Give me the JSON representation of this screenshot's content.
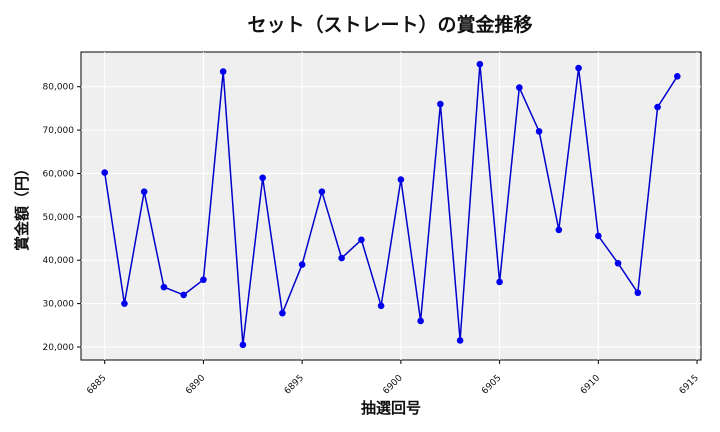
{
  "chart_data": {
    "type": "line",
    "title": "セット（ストレート）の賞金推移",
    "xlabel": "抽選回号",
    "ylabel": "賞金額（円）",
    "xlim": [
      6883.8,
      6915.2
    ],
    "ylim": [
      17000,
      88000
    ],
    "x_ticks": [
      6885,
      6890,
      6895,
      6900,
      6905,
      6910,
      6915
    ],
    "y_ticks": [
      20000,
      30000,
      40000,
      50000,
      60000,
      70000,
      80000
    ],
    "y_tick_labels": [
      "20,000",
      "30,000",
      "40,000",
      "50,000",
      "60,000",
      "70,000",
      "80,000"
    ],
    "grid": true,
    "colors": {
      "line": "#0000cc",
      "marker": "#0000ee",
      "plot_bg": "#efefef",
      "grid": "#ffffff"
    },
    "series": [
      {
        "x": [
          6885,
          6886,
          6887,
          6888,
          6889,
          6890,
          6891,
          6892,
          6893,
          6894,
          6895,
          6896,
          6897,
          6898,
          6899,
          6900,
          6901,
          6902,
          6903,
          6904,
          6905,
          6906,
          6907,
          6908,
          6909,
          6910,
          6911,
          6912,
          6913,
          6914
        ],
        "y": [
          60200,
          30000,
          55800,
          33800,
          32000,
          35500,
          83500,
          20500,
          59000,
          27800,
          39000,
          55800,
          40500,
          44700,
          29500,
          58600,
          26000,
          76000,
          21500,
          85200,
          35000,
          79800,
          69700,
          47000,
          84300,
          45600,
          39300,
          32500,
          75300,
          82400
        ]
      }
    ]
  }
}
